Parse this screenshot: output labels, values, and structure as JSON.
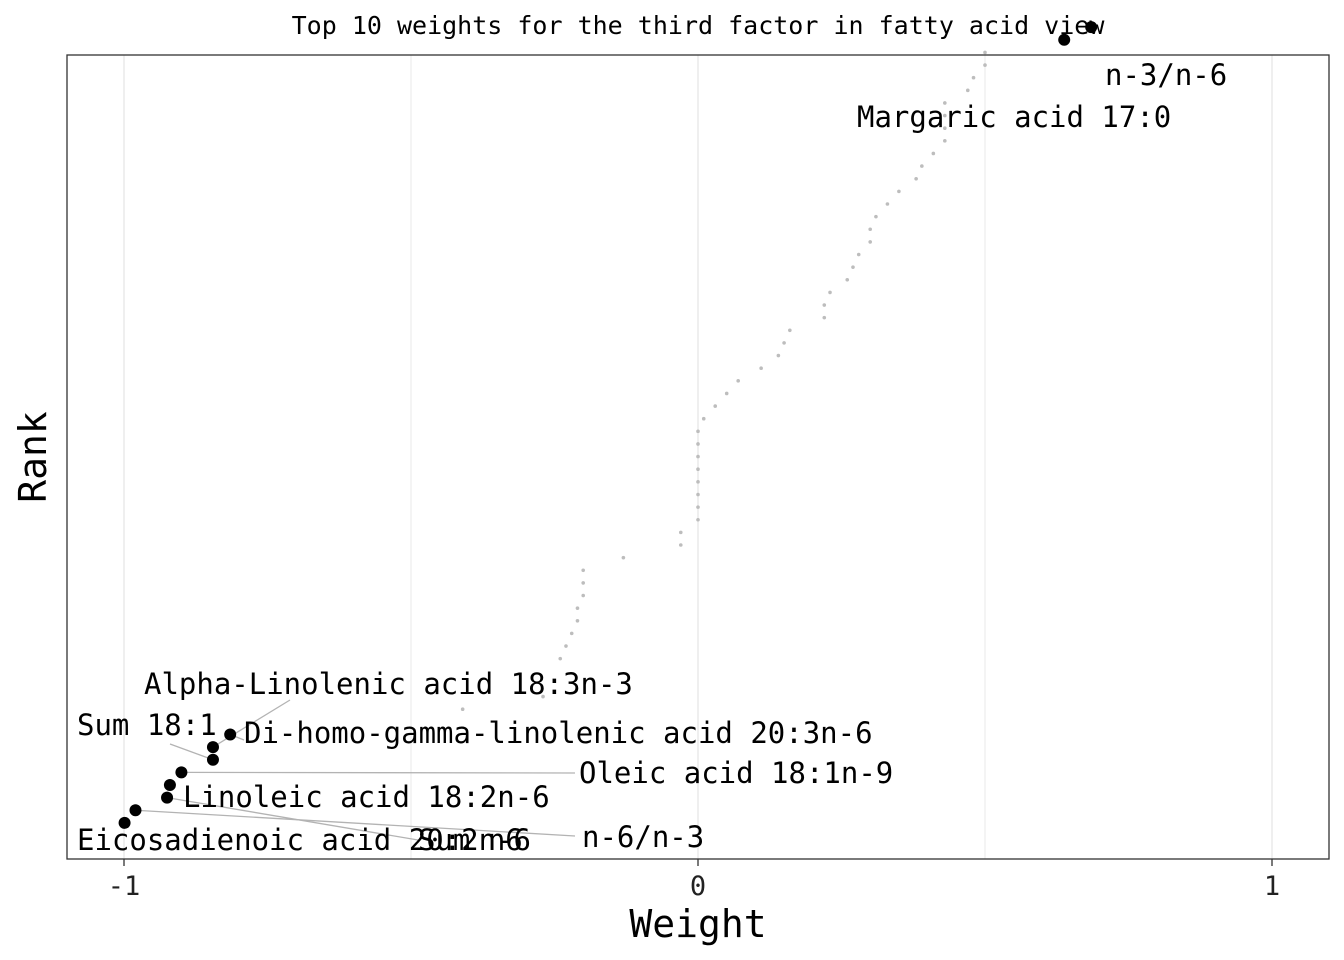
{
  "chart_data": {
    "type": "scatter",
    "title": "Top 10 weights for the third factor in fatty acid view",
    "xlabel": "Weight",
    "ylabel": "Rank",
    "xlim": [
      -1.1,
      1.1
    ],
    "ylim": [
      0.5,
      63
    ],
    "x_ticks": [
      -1,
      0,
      1
    ],
    "x_tick_labels": [
      "-1",
      "0",
      "1"
    ],
    "grid": "vertical",
    "background_points": {
      "color": "#bdbdbd",
      "values": [
        [
          -0.41,
          11
        ],
        [
          -0.27,
          12
        ],
        [
          -0.24,
          15
        ],
        [
          -0.23,
          16
        ],
        [
          -0.22,
          17
        ],
        [
          -0.21,
          18
        ],
        [
          -0.21,
          19
        ],
        [
          -0.2,
          20
        ],
        [
          -0.2,
          21
        ],
        [
          -0.2,
          22
        ],
        [
          -0.13,
          23
        ],
        [
          -0.03,
          24
        ],
        [
          -0.03,
          25
        ],
        [
          0.0,
          26
        ],
        [
          0.0,
          27
        ],
        [
          0.0,
          28
        ],
        [
          0.0,
          29
        ],
        [
          0.0,
          30
        ],
        [
          0.0,
          31
        ],
        [
          0.0,
          32
        ],
        [
          0.0,
          33
        ],
        [
          0.01,
          34
        ],
        [
          0.03,
          35
        ],
        [
          0.05,
          36
        ],
        [
          0.07,
          37
        ],
        [
          0.11,
          38
        ],
        [
          0.14,
          39
        ],
        [
          0.15,
          40
        ],
        [
          0.16,
          41
        ],
        [
          0.22,
          42
        ],
        [
          0.22,
          43
        ],
        [
          0.23,
          44
        ],
        [
          0.26,
          45
        ],
        [
          0.27,
          46
        ],
        [
          0.28,
          47
        ],
        [
          0.3,
          48
        ],
        [
          0.3,
          49
        ],
        [
          0.31,
          50
        ],
        [
          0.33,
          51
        ],
        [
          0.35,
          52
        ],
        [
          0.38,
          53
        ],
        [
          0.39,
          54
        ],
        [
          0.41,
          55
        ],
        [
          0.43,
          56
        ],
        [
          0.43,
          57
        ],
        [
          0.43,
          58
        ],
        [
          0.43,
          59
        ],
        [
          0.47,
          60
        ],
        [
          0.48,
          61
        ],
        [
          0.5,
          62
        ],
        [
          0.5,
          63
        ]
      ]
    },
    "series": [
      {
        "color": "#000000",
        "points": [
          {
            "x": -0.999,
            "y": 2,
            "label": "Eicosadienoic acid 20:2n-6"
          },
          {
            "x": -0.98,
            "y": 3,
            "label": "n-6/n-3"
          },
          {
            "x": -0.925,
            "y": 4,
            "label": "Sum n6"
          },
          {
            "x": -0.92,
            "y": 5,
            "label": "Linoleic acid 18:2n-6"
          },
          {
            "x": -0.9,
            "y": 6,
            "label": "Oleic acid 18:1n-9"
          },
          {
            "x": -0.845,
            "y": 7,
            "label": "Sum 18:1"
          },
          {
            "x": -0.845,
            "y": 8,
            "label": "Alpha-Linolenic acid 18:3n-3"
          },
          {
            "x": -0.815,
            "y": 9,
            "label": "Di-homo-gamma-linolenic acid 20:3n-6"
          },
          {
            "x": 0.638,
            "y": 64,
            "label": "Margaric acid 17:0"
          },
          {
            "x": 0.685,
            "y": 65,
            "label": "n-3/n-6"
          }
        ]
      }
    ]
  }
}
